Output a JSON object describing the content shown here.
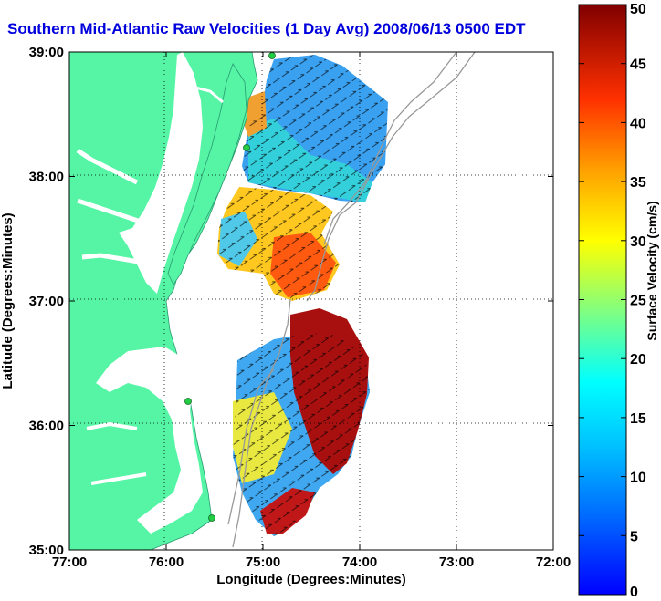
{
  "title": "Southern Mid-Atlantic Raw Velocities (1 Day Avg) 2008/06/13 0500 EDT",
  "x_axis": {
    "label": "Longitude (Degrees:Minutes)",
    "ticks": [
      "77:00",
      "76:00",
      "75:00",
      "74:00",
      "73:00",
      "72:00"
    ]
  },
  "y_axis": {
    "label": "Latitude (Degrees:Minutes)",
    "ticks": [
      "39:00",
      "38:00",
      "37:00",
      "36:00",
      "35:00"
    ]
  },
  "colorbar": {
    "label": "Surface Velocity (cm/s)",
    "ticks": [
      "50",
      "45",
      "40",
      "35",
      "30",
      "25",
      "20",
      "15",
      "10",
      "5",
      "0"
    ],
    "min": 0,
    "max": 50,
    "colormap": "jet"
  },
  "colors": {
    "title": "#0000dd",
    "land": "#55f5a5",
    "land_outline": "#2a9a70",
    "bathymetry": "#999999",
    "station": "#22cc44"
  },
  "extent": {
    "lon": [
      "77:00 W",
      "72:00 W"
    ],
    "lat": [
      "35:00 N",
      "39:00 N"
    ],
    "grid": "dotted"
  },
  "stations": 4
}
